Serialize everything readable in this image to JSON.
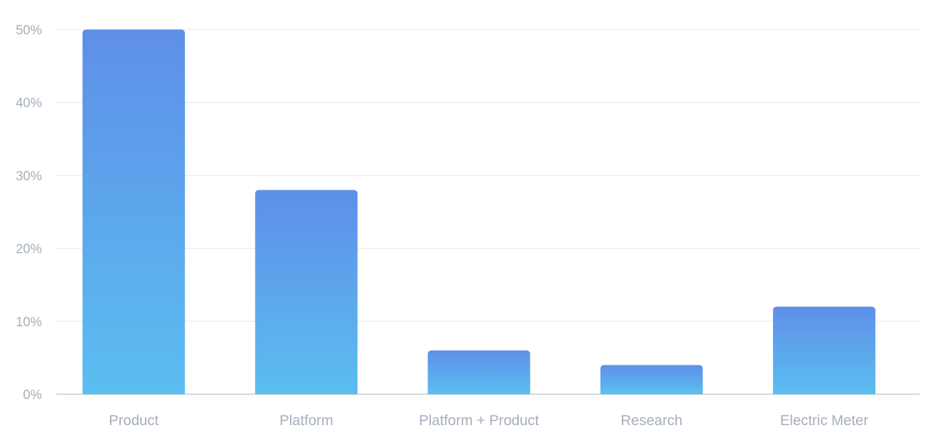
{
  "chart_data": {
    "type": "bar",
    "title": "",
    "xlabel": "",
    "ylabel": "",
    "categories": [
      "Product",
      "Platform",
      "Platform + Product",
      "Research",
      "Electric Meter"
    ],
    "values": [
      50,
      28,
      6,
      4,
      12
    ],
    "ylim": [
      0,
      50
    ],
    "yticks": [
      0,
      10,
      20,
      30,
      40,
      50
    ],
    "ytick_labels": [
      "0%",
      "10%",
      "20%",
      "30%",
      "40%",
      "50%"
    ],
    "grid": true,
    "legend": "none",
    "colors": {
      "bar_top": "#5e8fe8",
      "bar_bottom": "#5bbef0",
      "grid": "#e3e6ea",
      "axis": "#b9c0c8",
      "label": "#a5aebb"
    }
  }
}
